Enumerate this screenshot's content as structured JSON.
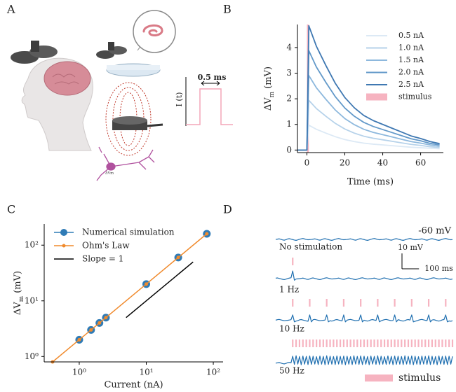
{
  "illustration": {
    "panel_label": "A",
    "pulse_ylabel": "I (t)",
    "pulse_width_label": "0.5 ms",
    "neuron_label": "ΔVm"
  },
  "chart_data": [
    {
      "type": "line",
      "panel_label": "B",
      "xlabel": "Time (ms)",
      "ylabel": {
        "text": "ΔV",
        "subscript": "m",
        "unit": "(mV)"
      },
      "xlim": [
        -5,
        72
      ],
      "ylim": [
        -0.1,
        4.9
      ],
      "xticks": [
        0,
        20,
        40,
        60
      ],
      "yticks": [
        0,
        1,
        2,
        3,
        4
      ],
      "legend": "upper right",
      "x": [
        -5,
        -2,
        -1,
        0,
        1,
        2,
        5,
        10,
        15,
        20,
        25,
        30,
        35,
        40,
        45,
        50,
        55,
        60,
        65,
        70
      ],
      "series": [
        {
          "name": "0.5 nA",
          "color": "#dce9f5",
          "values": [
            0,
            0,
            0,
            0,
            0.97,
            0.93,
            0.81,
            0.66,
            0.52,
            0.41,
            0.33,
            0.27,
            0.23,
            0.2,
            0.17,
            0.14,
            0.11,
            0.09,
            0.07,
            0.05
          ]
        },
        {
          "name": "1.0 nA",
          "color": "#b6d2ea",
          "values": [
            0,
            0,
            0,
            0,
            1.94,
            1.86,
            1.62,
            1.32,
            1.04,
            0.82,
            0.66,
            0.54,
            0.46,
            0.4,
            0.34,
            0.28,
            0.22,
            0.18,
            0.13,
            0.1
          ]
        },
        {
          "name": "1.5 nA",
          "color": "#8db8dd",
          "values": [
            0,
            0,
            0,
            0,
            2.91,
            2.79,
            2.43,
            1.98,
            1.56,
            1.23,
            0.99,
            0.81,
            0.69,
            0.6,
            0.51,
            0.42,
            0.33,
            0.27,
            0.2,
            0.15
          ]
        },
        {
          "name": "2.0 nA",
          "color": "#6399c9",
          "values": [
            0,
            0,
            0,
            0,
            3.88,
            3.72,
            3.24,
            2.64,
            2.08,
            1.64,
            1.32,
            1.08,
            0.92,
            0.8,
            0.68,
            0.56,
            0.44,
            0.36,
            0.26,
            0.2
          ]
        },
        {
          "name": "2.5 nA",
          "color": "#3f78b2",
          "values": [
            0,
            0,
            0,
            0,
            4.85,
            4.65,
            4.05,
            3.3,
            2.6,
            2.05,
            1.65,
            1.35,
            1.15,
            1.0,
            0.85,
            0.7,
            0.55,
            0.45,
            0.33,
            0.25
          ]
        }
      ],
      "stimulus": {
        "name": "stimulus",
        "color": "#f6b3c0",
        "x": [
          0,
          1
        ]
      }
    },
    {
      "type": "scatter",
      "panel_label": "C",
      "xlabel": "Current (nA)",
      "ylabel": {
        "text": "ΔV",
        "subscript": "m",
        "unit": "(mV)"
      },
      "log_x": true,
      "log_y": true,
      "xlim": [
        0.3,
        140
      ],
      "ylim": [
        0.8,
        240
      ],
      "legend": "upper left",
      "xticks": [
        {
          "value": 1,
          "label": "10⁰"
        },
        {
          "value": 10,
          "label": "10¹"
        },
        {
          "value": 100,
          "label": "10²"
        }
      ],
      "yticks": [
        {
          "value": 1,
          "label": "10⁰"
        },
        {
          "value": 10,
          "label": "10¹"
        },
        {
          "value": 100,
          "label": "10²"
        }
      ],
      "series": [
        {
          "name": "Numerical simulation",
          "mode": "markers",
          "color": "#2f7bb6",
          "x": [
            1,
            1.5,
            2,
            2.5,
            10,
            30,
            80
          ],
          "values": [
            2,
            3,
            4,
            5,
            20,
            60,
            160
          ]
        },
        {
          "name": "Ohm's Law",
          "mode": "line+markers",
          "color": "#f08a2c",
          "x": [
            0.4,
            1,
            1.5,
            2,
            2.5,
            10,
            30,
            80
          ],
          "values": [
            0.8,
            2,
            3,
            4,
            5,
            20,
            60,
            160
          ]
        },
        {
          "name": "Slope = 1",
          "mode": "line",
          "color": "#000000",
          "x": [
            5,
            50
          ],
          "values": [
            5,
            50
          ]
        }
      ]
    },
    {
      "type": "trace",
      "panel_label": "D",
      "xlim": [
        0,
        1040
      ],
      "legend": "stimulus",
      "stimulus_color": "#f6b3c0",
      "baseline_label": "-60 mV",
      "scalebar": {
        "mv": 10,
        "ms": 100,
        "mv_label": "10 mV",
        "ms_label": "100 ms"
      },
      "t": [
        0,
        10,
        20,
        30,
        40,
        50,
        60,
        70,
        80,
        90,
        100,
        110,
        120,
        130,
        140,
        150,
        160,
        170,
        180,
        190,
        200,
        210,
        220,
        230,
        240,
        250,
        260,
        270,
        280,
        290,
        300,
        310,
        320,
        330,
        340,
        350,
        360,
        370,
        380,
        390,
        400,
        410,
        420,
        430,
        440,
        450,
        460,
        470,
        480,
        490,
        500,
        510,
        520,
        530,
        540,
        550,
        560,
        570,
        580,
        590,
        600,
        610,
        620,
        630,
        640,
        650,
        660,
        670,
        680,
        690,
        700,
        710,
        720,
        730,
        740,
        750,
        760,
        770,
        780,
        790,
        800,
        810,
        820,
        830,
        840,
        850,
        860,
        870,
        880,
        890,
        900,
        910,
        920,
        930,
        940,
        950,
        960,
        970,
        980,
        990,
        1000,
        1010,
        1020,
        1030,
        1040
      ],
      "series": [
        {
          "name": "No stimulation",
          "color": "#1f6fb0",
          "values": [
            -60.0,
            -59.8,
            -59.6,
            -59.9,
            -60.3,
            -60.5,
            -60.2,
            -59.7,
            -59.5,
            -59.8,
            -60.1,
            -60.4,
            -60.6,
            -60.3,
            -59.9,
            -59.6,
            -59.4,
            -59.7,
            -60.0,
            -60.2,
            -60.1,
            -60.0,
            -59.8,
            -59.6,
            -59.9,
            -60.3,
            -60.5,
            -60.2,
            -59.7,
            -59.5,
            -59.8,
            -60.1,
            -60.4,
            -60.6,
            -60.3,
            -59.9,
            -59.6,
            -59.4,
            -59.7,
            -60.0,
            -60.2,
            -60.1,
            -60.0,
            -59.8,
            -59.6,
            -59.9,
            -60.3,
            -60.5,
            -60.2,
            -59.7,
            -59.5,
            -59.8,
            -60.1,
            -60.4,
            -60.6,
            -60.3,
            -59.9,
            -59.6,
            -59.4,
            -59.7,
            -60.0,
            -60.2,
            -60.1,
            -60.0,
            -59.8,
            -59.6,
            -59.9,
            -60.3,
            -60.5,
            -60.2,
            -59.7,
            -59.5,
            -59.8,
            -60.1,
            -60.4,
            -60.6,
            -60.3,
            -59.9,
            -59.6,
            -59.4,
            -59.7,
            -60.0,
            -60.2,
            -60.1,
            -60.0,
            -59.8,
            -59.6,
            -59.9,
            -60.3,
            -60.5,
            -60.2,
            -59.7,
            -59.5,
            -59.8,
            -60.1,
            -60.4,
            -60.6,
            -60.3,
            -59.9,
            -59.6,
            -59.4,
            -59.7,
            -60.0,
            -60.2,
            -60.1
          ]
        },
        {
          "name": "1 Hz",
          "color": "#1f6fb0",
          "stimulus": [
            100
          ],
          "values": [
            -59.7,
            -59.5,
            -59.8,
            -60.1,
            -60.4,
            -60.6,
            -60.3,
            -59.9,
            -59.6,
            -59.4,
            -55.0,
            -61.0,
            -60.2,
            -60.1,
            -60.0,
            -59.8,
            -59.6,
            -59.9,
            -60.3,
            -60.5,
            -60.2,
            -59.7,
            -59.5,
            -59.8,
            -60.1,
            -60.4,
            -60.6,
            -60.3,
            -59.9,
            -59.6,
            -59.4,
            -59.7,
            -60.0,
            -60.2,
            -60.1,
            -60.0,
            -59.8,
            -59.6,
            -59.9,
            -60.3,
            -60.5,
            -60.2,
            -59.7,
            -59.5,
            -59.8,
            -60.1,
            -60.4,
            -60.6,
            -60.3,
            -59.9,
            -59.6,
            -59.4,
            -59.7,
            -60.0,
            -60.2,
            -60.1,
            -60.0,
            -59.8,
            -59.6,
            -59.9,
            -60.3,
            -60.5,
            -60.2,
            -59.7,
            -59.5,
            -59.8,
            -60.1,
            -60.4,
            -60.6,
            -60.3,
            -59.9,
            -59.6,
            -59.4,
            -59.7,
            -60.0,
            -60.2,
            -60.1,
            -60.0,
            -59.8,
            -59.6,
            -59.9,
            -60.3,
            -60.5,
            -60.2,
            -59.7,
            -59.5,
            -59.8,
            -60.1,
            -60.4,
            -60.6,
            -60.3,
            -59.9,
            -59.6,
            -59.4,
            -59.7,
            -60.0,
            -60.2,
            -60.1,
            -60.0,
            -59.8,
            -59.6,
            -59.9,
            -60.3,
            -60.5,
            -60.2
          ]
        },
        {
          "name": "10 Hz",
          "color": "#1f6fb0",
          "stimulus": [
            100,
            200,
            300,
            400,
            500,
            600,
            700,
            800,
            900,
            1000
          ],
          "values": [
            -59.9,
            -59.6,
            -59.4,
            -59.7,
            -60.0,
            -60.2,
            -60.1,
            -60.0,
            -59.8,
            -59.6,
            -56.5,
            -61.0,
            -60.5,
            -60.2,
            -59.7,
            -59.5,
            -59.8,
            -60.1,
            -60.4,
            -60.6,
            -56.5,
            -61.0,
            -59.6,
            -59.4,
            -59.7,
            -60.0,
            -60.2,
            -60.1,
            -60.0,
            -59.8,
            -56.5,
            -61.0,
            -60.3,
            -60.5,
            -60.2,
            -59.7,
            -59.5,
            -59.8,
            -60.1,
            -60.4,
            -56.5,
            -61.0,
            -59.9,
            -59.6,
            -59.4,
            -59.7,
            -60.0,
            -60.2,
            -60.1,
            -60.0,
            -56.5,
            -61.0,
            -59.9,
            -60.3,
            -60.5,
            -60.2,
            -59.7,
            -59.5,
            -59.8,
            -60.1,
            -56.5,
            -61.0,
            -60.3,
            -59.9,
            -59.6,
            -59.4,
            -59.7,
            -60.0,
            -60.2,
            -60.1,
            -56.5,
            -61.0,
            -59.6,
            -59.9,
            -60.3,
            -60.5,
            -60.2,
            -59.7,
            -59.5,
            -59.8,
            -56.5,
            -61.0,
            -60.6,
            -60.3,
            -59.9,
            -59.6,
            -59.4,
            -59.7,
            -60.0,
            -60.2,
            -56.5,
            -61.0,
            -59.8,
            -59.6,
            -59.9,
            -60.3,
            -60.5,
            -60.2,
            -59.7,
            -59.5,
            -56.5,
            -61.0,
            -60.4,
            -60.6,
            -60.3
          ]
        },
        {
          "name": "50 Hz",
          "color": "#1f6fb0",
          "stimulus": [
            100,
            120,
            140,
            160,
            180,
            200,
            220,
            240,
            260,
            280,
            300,
            320,
            340,
            360,
            380,
            400,
            420,
            440,
            460,
            480,
            500,
            520,
            540,
            560,
            580,
            600,
            620,
            640,
            660,
            680,
            700,
            720,
            740,
            760,
            780,
            800,
            820,
            840,
            860,
            880,
            900,
            920,
            940,
            960,
            980,
            1000,
            1020,
            1040
          ],
          "values": [
            -60.0,
            -59.8,
            -59.6,
            -59.9,
            -60.3,
            -60.5,
            -60.2,
            -59.7,
            -59.5,
            -59.8,
            -55.5,
            -60.8,
            -55.2,
            -60.6,
            -55.7,
            -61.0,
            -55.4,
            -60.7,
            -55.6,
            -60.9,
            -55.3,
            -60.8,
            -55.5,
            -60.6,
            -55.8,
            -60.9,
            -55.4,
            -60.7,
            -55.6,
            -61.0,
            -55.2,
            -60.8,
            -55.5,
            -60.7,
            -55.7,
            -60.9,
            -55.3,
            -60.6,
            -55.6,
            -60.8,
            -55.4,
            -61.0,
            -55.5,
            -60.7,
            -55.8,
            -60.9,
            -55.2,
            -60.6,
            -55.6,
            -60.8,
            -55.3,
            -60.9,
            -55.5,
            -60.7,
            -55.7,
            -61.0,
            -55.4,
            -60.6,
            -55.6,
            -60.8,
            -55.2,
            -60.9,
            -55.5,
            -60.7,
            -55.8,
            -60.8,
            -55.3,
            -60.6,
            -55.6,
            -61.0,
            -55.4,
            -60.8,
            -55.5,
            -60.7,
            -55.7,
            -60.9,
            -55.2,
            -60.6,
            -55.6,
            -60.8,
            -55.3,
            -61.0,
            -55.5,
            -60.7,
            -55.8,
            -60.9,
            -55.4,
            -60.6,
            -55.6,
            -60.8,
            -55.2,
            -60.9,
            -55.5,
            -60.7,
            -55.7,
            -61.0,
            -55.3,
            -60.6,
            -55.6,
            -60.8,
            -55.4,
            -60.9,
            -55.5,
            -60.7,
            -55.6
          ]
        }
      ]
    }
  ]
}
